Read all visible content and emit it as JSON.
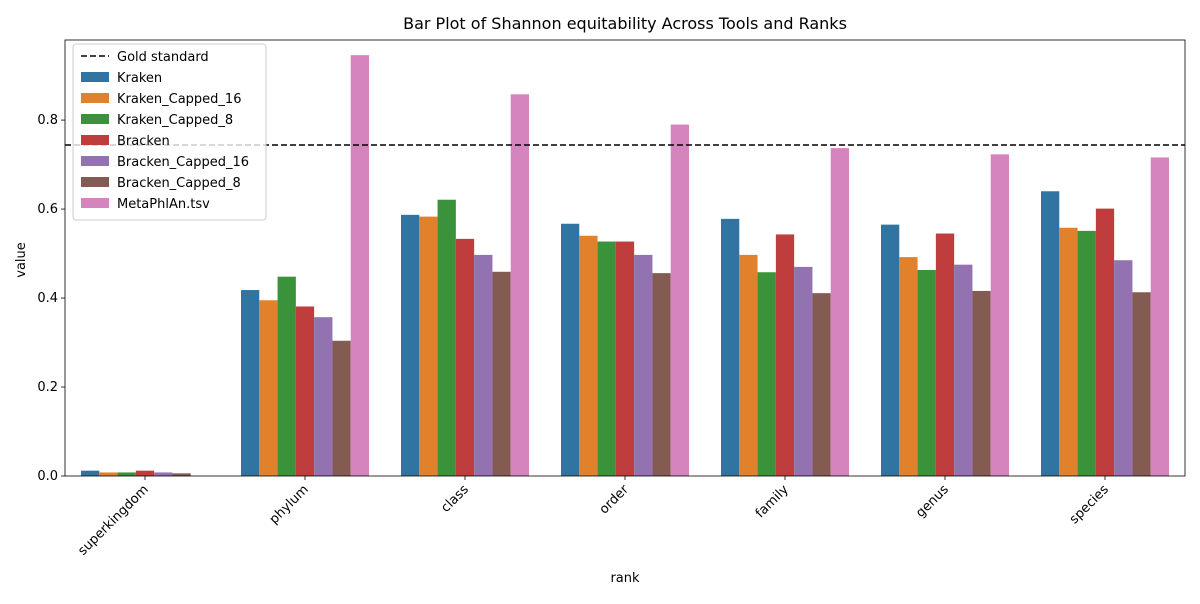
{
  "chart_data": {
    "type": "bar",
    "title": "Bar Plot of Shannon equitability Across Tools and Ranks",
    "xlabel": "rank",
    "ylabel": "value",
    "ylim": [
      0,
      0.98
    ],
    "yticks": [
      0.0,
      0.2,
      0.4,
      0.6,
      0.8
    ],
    "ytick_labels": [
      "0.0",
      "0.2",
      "0.4",
      "0.6",
      "0.8"
    ],
    "grid": false,
    "legend_position": "top-left",
    "categories": [
      "superkingdom",
      "phylum",
      "class",
      "order",
      "family",
      "genus",
      "species"
    ],
    "reference_line": {
      "name": "Gold standard",
      "value": 0.744,
      "style": "dashed",
      "color": "#000000"
    },
    "series": [
      {
        "name": "Kraken",
        "color": "#3274a1",
        "values": [
          0.012,
          0.418,
          0.587,
          0.567,
          0.578,
          0.565,
          0.64
        ]
      },
      {
        "name": "Kraken_Capped_16",
        "color": "#e1812c",
        "values": [
          0.008,
          0.395,
          0.583,
          0.54,
          0.497,
          0.492,
          0.558
        ]
      },
      {
        "name": "Kraken_Capped_8",
        "color": "#3a923a",
        "values": [
          0.008,
          0.448,
          0.621,
          0.527,
          0.458,
          0.463,
          0.551
        ]
      },
      {
        "name": "Bracken",
        "color": "#c03d3e",
        "values": [
          0.012,
          0.381,
          0.533,
          0.527,
          0.543,
          0.545,
          0.601
        ]
      },
      {
        "name": "Bracken_Capped_16",
        "color": "#9372b2",
        "values": [
          0.008,
          0.357,
          0.497,
          0.497,
          0.47,
          0.475,
          0.485
        ]
      },
      {
        "name": "Bracken_Capped_8",
        "color": "#845b53",
        "values": [
          0.006,
          0.304,
          0.459,
          0.456,
          0.411,
          0.416,
          0.413
        ]
      },
      {
        "name": "MetaPhlAn.tsv",
        "color": "#d684bd",
        "values": [
          0.0,
          0.946,
          0.858,
          0.79,
          0.737,
          0.723,
          0.716
        ]
      }
    ]
  }
}
